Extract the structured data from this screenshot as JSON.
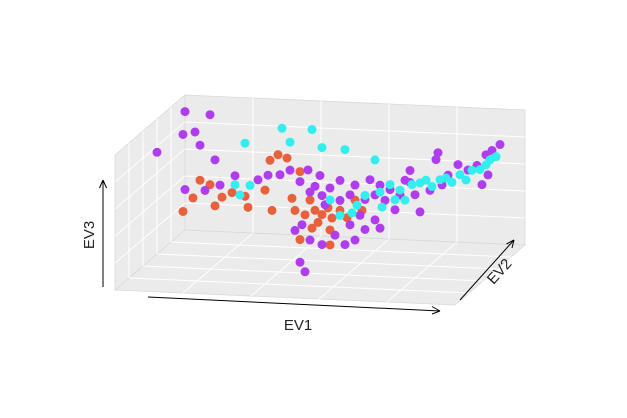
{
  "chart_data": {
    "type": "scatter3d",
    "x_label": "EV1",
    "y_label": "EV2",
    "z_label": "EV3",
    "xlim": [
      0,
      34
    ],
    "ylim": [
      0,
      10
    ],
    "zlim": [
      0,
      13.5
    ],
    "grid": true,
    "series": [
      {
        "color": "#E8603C",
        "x": [
          3.3,
          4.3,
          5.0,
          6.0,
          6.5,
          7.2,
          8.2,
          9.5,
          9.8,
          11.5,
          12.0,
          12.8,
          13.7,
          12.2,
          15.0,
          14.5,
          15.5,
          16.0,
          16.5,
          17.2,
          17.8,
          18.2,
          15.0,
          16.2,
          18.0,
          19.0,
          19.7,
          20.5,
          21.2,
          18.0,
          14.2,
          16.8
        ],
        "y": [
          5,
          5,
          5,
          5,
          5,
          5,
          5,
          5,
          5,
          5,
          5,
          5,
          5,
          5,
          5,
          5,
          5,
          5,
          5,
          5,
          5,
          5,
          5,
          5,
          5,
          5,
          5,
          5,
          5,
          5,
          5,
          5
        ],
        "z": [
          5.0,
          6.4,
          8.2,
          7.8,
          5.7,
          6.6,
          7.1,
          6.8,
          5.7,
          7.5,
          10.5,
          11.1,
          10.8,
          5.5,
          9.5,
          5.6,
          5.2,
          6.7,
          5.7,
          5.3,
          6.0,
          5.0,
          2.7,
          3.9,
          3.8,
          5.8,
          5.1,
          6.9,
          5.9,
          2.3,
          6.8,
          4.5
        ]
      },
      {
        "color": "#B03CF0",
        "x": [
          0.7,
          1.4,
          3.9,
          3.3,
          4.5,
          5.0,
          6.5,
          3.5,
          5.5,
          7.0,
          8.5,
          10.8,
          11.8,
          13.0,
          14.0,
          15.0,
          15.8,
          16.5,
          17.0,
          16.0,
          17.2,
          18.0,
          19.0,
          20.0,
          20.5,
          21.5,
          22.0,
          22.5,
          23.0,
          23.5,
          24.0,
          24.5,
          25.5,
          26.0,
          26.5,
          27.0,
          28.0,
          28.6,
          28.8,
          29.2,
          29.8,
          30.8,
          31.8,
          32.7,
          33.6,
          32.8,
          32.9,
          33.8,
          33.2,
          14.5,
          15.2,
          16.0,
          17.2,
          16.4,
          17.6,
          19.5,
          20.5,
          21.5,
          22.5,
          23.0,
          20.0,
          18.5,
          21.0,
          25.0,
          26.0,
          17.5,
          19.0
        ],
        "y": [
          5,
          8,
          8,
          5,
          5,
          5,
          5,
          5,
          5,
          5,
          5,
          5,
          5,
          5,
          5,
          5,
          5,
          5,
          5,
          5,
          5,
          5,
          5,
          5,
          5,
          5,
          5,
          5,
          5,
          5,
          5,
          5,
          5,
          5,
          5,
          5,
          5,
          5,
          5,
          5,
          5,
          5,
          5,
          5,
          5,
          7,
          8,
          5,
          5,
          5,
          5,
          5,
          5,
          3,
          2,
          5,
          5,
          5,
          5,
          5,
          5,
          5,
          5,
          5,
          5,
          5,
          5
        ],
        "z": [
          10.8,
          13.1,
          12.9,
          12.7,
          13.0,
          11.7,
          10.3,
          7.2,
          7.2,
          7.8,
          8.8,
          8.5,
          9.0,
          9.1,
          9.6,
          8.5,
          9.7,
          8.1,
          9.2,
          7.5,
          7.2,
          8.0,
          8.8,
          7.4,
          8.4,
          7.0,
          9.0,
          7.5,
          8.5,
          7.0,
          8.1,
          6.1,
          9.1,
          10.1,
          7.7,
          6.0,
          8.2,
          11.3,
          12.0,
          8.8,
          9.8,
          10.9,
          10.4,
          10.9,
          12.0,
          11.2,
          11.2,
          10.0,
          9.0,
          3.6,
          4.2,
          2.7,
          2.3,
          1.7,
          1.4,
          2.4,
          2.9,
          4.0,
          5.0,
          4.2,
          4.4,
          3.3,
          5.4,
          7.6,
          8.9,
          6.3,
          6.8
        ]
      },
      {
        "color": "#33EEEE",
        "x": [
          11.8,
          14.0,
          9.5,
          14.8,
          17.2,
          19.5,
          8.5,
          10.0,
          9.0,
          18.0,
          19.0,
          20.2,
          20.7,
          21.5,
          22.5,
          23.0,
          24.0,
          25.0,
          25.5,
          26.2,
          27.0,
          27.6,
          28.2,
          29.0,
          29.6,
          30.2,
          31.0,
          31.6,
          32.2,
          33.0,
          33.6,
          33.3,
          33.2,
          23.2,
          24.5
        ],
        "y": [
          7,
          5,
          5,
          7,
          5,
          5,
          5,
          5,
          5,
          5,
          5,
          5,
          5,
          5,
          5,
          5,
          5,
          5,
          5,
          5,
          5,
          5,
          5,
          5,
          5,
          5,
          5,
          5,
          5,
          5,
          5,
          6,
          7,
          5,
          5
        ],
        "z": [
          12.5,
          12.4,
          12.1,
          12.5,
          12.0,
          11.9,
          7.9,
          7.9,
          6.9,
          6.8,
          5.3,
          5.6,
          6.4,
          7.4,
          11.0,
          7.8,
          8.6,
          8.1,
          7.1,
          8.7,
          8.9,
          9.2,
          8.6,
          9.3,
          9.5,
          9.1,
          9.9,
          9.4,
          10.4,
          10.5,
          11.0,
          10.9,
          10.6,
          6.3,
          7.1
        ]
      }
    ]
  }
}
